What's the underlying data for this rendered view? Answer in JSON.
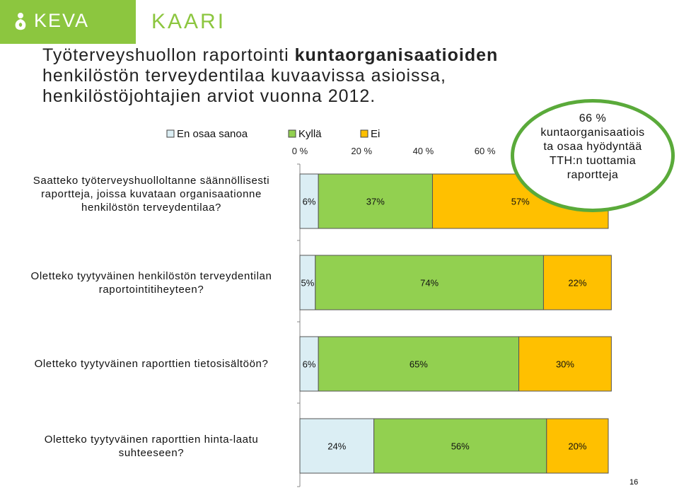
{
  "brand": {
    "keva": "KEVA",
    "kaari": "KAARI",
    "band_color": "#8cc63f"
  },
  "title": {
    "part1": "Työterveyshuollon raportointi ",
    "bold": "kuntaorganisaatioiden",
    "part2": " henkilöstön terveydentilaa kuvaavissa asioissa, henkilöstöjohtajien arviot vuonna 2012."
  },
  "chart_data": {
    "type": "bar",
    "orientation": "horizontal",
    "stacked": true,
    "title": "",
    "xlabel": "",
    "ylabel": "",
    "xlim": [
      0,
      100
    ],
    "x_ticks": [
      "0 %",
      "20 %",
      "40 %",
      "60 %"
    ],
    "legend_position": "top",
    "categories": [
      "Saatteko työterveyshuolloltanne säännöllisesti raportteja, joissa kuvataan organisaationne henkilöstön terveydentilaa?",
      "Oletteko tyytyväinen henkilöstön terveydentilan raportointitiheyteen?",
      "Oletteko tyytyväinen raporttien tietosisältöön?",
      "Oletteko tyytyväinen raporttien hinta-laatu suhteeseen?"
    ],
    "series": [
      {
        "name": "En osaa sanoa",
        "color": "#dbeef4",
        "values": [
          6,
          5,
          6,
          24
        ],
        "labels": [
          "6%",
          "5%",
          "6%",
          "24%"
        ]
      },
      {
        "name": "Kyllä",
        "color": "#92d050",
        "values": [
          37,
          74,
          65,
          56
        ],
        "labels": [
          "37%",
          "74%",
          "65%",
          "56%"
        ]
      },
      {
        "name": "Ei",
        "color": "#ffc000",
        "values": [
          57,
          22,
          30,
          20
        ],
        "labels": [
          "57%",
          "22%",
          "30%",
          "20%"
        ]
      }
    ]
  },
  "callout": {
    "text": "66 % kuntaorganisaatiois ta osaa hyödyntää TTH:n tuottamia raportteja",
    "lines": [
      "66 %",
      "kuntaorganisaatiois",
      "ta osaa hyödyntää",
      "TTH:n tuottamia",
      "raportteja"
    ],
    "border_color": "#5aaa3a"
  },
  "question_lines": [
    [
      "Saatteko työterveyshuolloltanne säännöllisesti",
      "raportteja, joissa kuvataan organisaationne",
      "henkilöstön terveydentilaa?"
    ],
    [
      "Oletteko tyytyväinen henkilöstön terveydentilan",
      "raportointitiheyteen?"
    ],
    [
      "Oletteko tyytyväinen raporttien tietosisältöön?"
    ],
    [
      "Oletteko tyytyväinen raporttien hinta-laatu",
      "suhteeseen?"
    ]
  ],
  "page_number": "16"
}
